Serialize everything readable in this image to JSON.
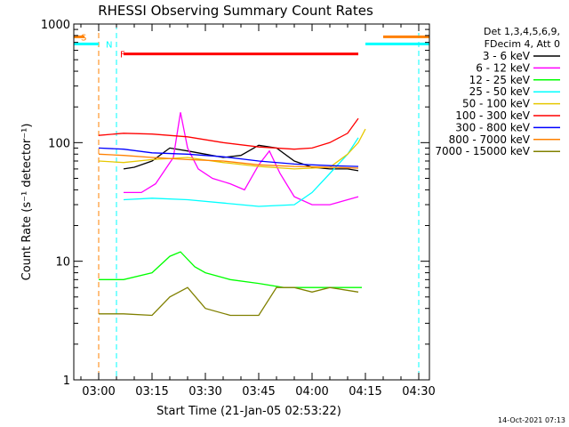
{
  "chart_data": {
    "type": "line",
    "title": "RHESSI Observing Summary Count Rates",
    "xlabel": "Start Time (21-Jan-05 02:53:22)",
    "ylabel": "Count Rate (s⁻¹ detector⁻¹)",
    "y_scale": "log",
    "ylim": [
      1,
      1000
    ],
    "x_range_minutes_utc": [
      "02:53",
      "04:33"
    ],
    "x_ticks": [
      "03:00",
      "03:15",
      "03:30",
      "03:45",
      "04:00",
      "04:15",
      "04:30"
    ],
    "y_ticks": [
      "1",
      "10",
      "100",
      "1000"
    ],
    "legend_header": [
      "Det 1,3,4,5,6,9,",
      "FDecim 4, Att 0"
    ],
    "series": [
      {
        "name": "3 - 6 keV",
        "color": "#000000",
        "points": [
          [
            "03:07",
            60
          ],
          [
            "03:10",
            62
          ],
          [
            "03:15",
            70
          ],
          [
            "03:20",
            90
          ],
          [
            "03:25",
            85
          ],
          [
            "03:30",
            80
          ],
          [
            "03:35",
            75
          ],
          [
            "03:40",
            78
          ],
          [
            "03:45",
            95
          ],
          [
            "03:50",
            90
          ],
          [
            "03:55",
            70
          ],
          [
            "04:00",
            62
          ],
          [
            "04:05",
            60
          ],
          [
            "04:10",
            60
          ],
          [
            "04:13",
            58
          ]
        ]
      },
      {
        "name": "6 - 12 keV",
        "color": "#ff00ff",
        "points": [
          [
            "03:07",
            38
          ],
          [
            "03:12",
            38
          ],
          [
            "03:16",
            45
          ],
          [
            "03:21",
            75
          ],
          [
            "03:23",
            180
          ],
          [
            "03:25",
            90
          ],
          [
            "03:28",
            60
          ],
          [
            "03:32",
            50
          ],
          [
            "03:37",
            45
          ],
          [
            "03:41",
            40
          ],
          [
            "03:45",
            65
          ],
          [
            "03:48",
            85
          ],
          [
            "03:51",
            55
          ],
          [
            "03:55",
            35
          ],
          [
            "04:00",
            30
          ],
          [
            "04:05",
            30
          ],
          [
            "04:10",
            33
          ],
          [
            "04:13",
            35
          ]
        ]
      },
      {
        "name": "12 - 25 keV",
        "color": "#00ff00",
        "points": [
          [
            "03:00",
            7
          ],
          [
            "03:07",
            7
          ],
          [
            "03:15",
            8
          ],
          [
            "03:20",
            11
          ],
          [
            "03:23",
            12
          ],
          [
            "03:27",
            9
          ],
          [
            "03:30",
            8
          ],
          [
            "03:37",
            7
          ],
          [
            "03:45",
            6.5
          ],
          [
            "03:52",
            6
          ],
          [
            "04:00",
            6
          ],
          [
            "04:08",
            6
          ],
          [
            "04:14",
            6
          ]
        ]
      },
      {
        "name": "25 - 50 keV",
        "color": "#00ffff",
        "points": [
          [
            "03:07",
            33
          ],
          [
            "03:15",
            34
          ],
          [
            "03:25",
            33
          ],
          [
            "03:35",
            31
          ],
          [
            "03:45",
            29
          ],
          [
            "03:55",
            30
          ],
          [
            "04:00",
            38
          ],
          [
            "04:05",
            55
          ],
          [
            "04:10",
            80
          ],
          [
            "04:13",
            110
          ]
        ]
      },
      {
        "name": "50 - 100 keV",
        "color": "#e6c800",
        "points": [
          [
            "03:00",
            70
          ],
          [
            "03:07",
            68
          ],
          [
            "03:15",
            72
          ],
          [
            "03:25",
            75
          ],
          [
            "03:35",
            68
          ],
          [
            "03:45",
            63
          ],
          [
            "03:55",
            60
          ],
          [
            "04:05",
            62
          ],
          [
            "04:10",
            80
          ],
          [
            "04:13",
            100
          ],
          [
            "04:15",
            130
          ]
        ]
      },
      {
        "name": "100 - 300 keV",
        "color": "#ff0000",
        "points": [
          [
            "03:00",
            115
          ],
          [
            "03:07",
            120
          ],
          [
            "03:15",
            118
          ],
          [
            "03:25",
            112
          ],
          [
            "03:35",
            100
          ],
          [
            "03:45",
            92
          ],
          [
            "03:55",
            88
          ],
          [
            "04:00",
            90
          ],
          [
            "04:05",
            100
          ],
          [
            "04:10",
            120
          ],
          [
            "04:13",
            160
          ]
        ]
      },
      {
        "name": "300 - 800 keV",
        "color": "#0000ff",
        "points": [
          [
            "03:00",
            90
          ],
          [
            "03:07",
            88
          ],
          [
            "03:15",
            82
          ],
          [
            "03:25",
            80
          ],
          [
            "03:35",
            76
          ],
          [
            "03:45",
            70
          ],
          [
            "03:55",
            66
          ],
          [
            "04:05",
            64
          ],
          [
            "04:13",
            63
          ]
        ]
      },
      {
        "name": "800 - 7000 keV",
        "color": "#ff8000",
        "points": [
          [
            "03:00",
            80
          ],
          [
            "03:07",
            78
          ],
          [
            "03:15",
            75
          ],
          [
            "03:25",
            72
          ],
          [
            "03:35",
            70
          ],
          [
            "03:45",
            65
          ],
          [
            "03:55",
            63
          ],
          [
            "04:05",
            62
          ],
          [
            "04:13",
            61
          ]
        ]
      },
      {
        "name": "7000 - 15000 keV",
        "color": "#808000",
        "points": [
          [
            "03:00",
            3.6
          ],
          [
            "03:07",
            3.6
          ],
          [
            "03:15",
            3.5
          ],
          [
            "03:20",
            5
          ],
          [
            "03:25",
            6
          ],
          [
            "03:30",
            4
          ],
          [
            "03:37",
            3.5
          ],
          [
            "03:45",
            3.5
          ],
          [
            "03:50",
            6
          ],
          [
            "03:55",
            6
          ],
          [
            "04:00",
            5.5
          ],
          [
            "04:05",
            6
          ],
          [
            "04:13",
            5.5
          ]
        ]
      }
    ],
    "annotations": [
      {
        "text": "S",
        "color": "#ff8000",
        "x": "02:54",
        "y": 780
      },
      {
        "text": "N",
        "color": "#00ffff",
        "x": "03:01",
        "y": 680
      },
      {
        "text": "F",
        "color": "#ff0000",
        "x": "03:05",
        "y": 560
      }
    ],
    "marker_lines": [
      {
        "kind": "S-start",
        "color": "#ff8000",
        "x": "03:00",
        "dashed": true
      },
      {
        "kind": "N-start",
        "color": "#00ffff",
        "x": "03:05",
        "dashed": true
      },
      {
        "kind": "S-end",
        "color": "#ff8000",
        "x": "04:30",
        "dashed": true
      },
      {
        "kind": "N-end",
        "color": "#00ffff",
        "x": "04:30",
        "dashed": true
      }
    ],
    "flag_bars": [
      {
        "name": "S",
        "color": "#ff8000",
        "segments": [
          [
            "02:53",
            "02:56"
          ],
          [
            "04:20",
            "04:33"
          ]
        ],
        "y": 780
      },
      {
        "name": "N",
        "color": "#00ffff",
        "segments": [
          [
            "02:53",
            "03:00"
          ],
          [
            "04:15",
            "04:33"
          ]
        ],
        "y": 680
      },
      {
        "name": "F",
        "color": "#ff0000",
        "segments": [
          [
            "03:07",
            "04:13"
          ]
        ],
        "y": 560
      }
    ],
    "grid": false,
    "legend_position": "right",
    "footer_date": "14-Oct-2021 07:13"
  }
}
